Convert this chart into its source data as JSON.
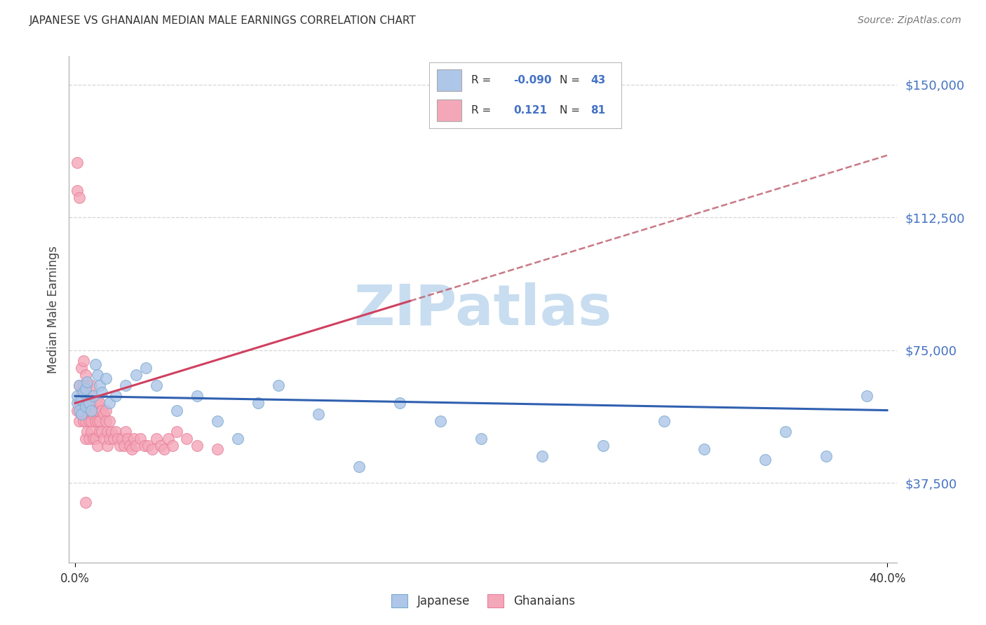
{
  "title": "JAPANESE VS GHANAIAN MEDIAN MALE EARNINGS CORRELATION CHART",
  "source": "Source: ZipAtlas.com",
  "ylabel": "Median Male Earnings",
  "ytick_labels": [
    "$37,500",
    "$75,000",
    "$112,500",
    "$150,000"
  ],
  "ytick_values": [
    37500,
    75000,
    112500,
    150000
  ],
  "ymin": 15000,
  "ymax": 158000,
  "xmin": -0.003,
  "xmax": 0.405,
  "legend_r_japanese": "-0.090",
  "legend_n_japanese": "43",
  "legend_r_ghanaian": "0.121",
  "legend_n_ghanaian": "81",
  "color_japanese": "#aec6e8",
  "color_ghanaian": "#f4a7b9",
  "color_japanese_edge": "#7aaad0",
  "color_ghanaian_edge": "#e8809a",
  "color_japanese_line": "#3060b0",
  "color_ghanaian_line_solid": "#d04060",
  "color_ghanaian_line_dashed": "#c06070",
  "watermark_color": "#c8ddf0",
  "background_color": "#ffffff",
  "grid_color": "#cccccc",
  "title_color": "#333333",
  "source_color": "#777777",
  "axis_label_color": "#4472c4",
  "legend_text_color": "#333333",
  "japanese_x": [
    0.001,
    0.001,
    0.002,
    0.002,
    0.003,
    0.003,
    0.004,
    0.005,
    0.005,
    0.006,
    0.007,
    0.008,
    0.009,
    0.01,
    0.011,
    0.012,
    0.013,
    0.015,
    0.017,
    0.02,
    0.025,
    0.03,
    0.035,
    0.04,
    0.05,
    0.06,
    0.07,
    0.08,
    0.09,
    0.1,
    0.12,
    0.14,
    0.16,
    0.18,
    0.2,
    0.23,
    0.26,
    0.29,
    0.31,
    0.34,
    0.35,
    0.37,
    0.39
  ],
  "japanese_y": [
    60000,
    62000,
    58000,
    65000,
    57000,
    61000,
    63000,
    59000,
    64000,
    66000,
    60000,
    58000,
    62000,
    71000,
    68000,
    65000,
    63000,
    67000,
    60000,
    62000,
    65000,
    68000,
    70000,
    65000,
    58000,
    62000,
    55000,
    50000,
    60000,
    65000,
    57000,
    42000,
    60000,
    55000,
    50000,
    45000,
    48000,
    55000,
    47000,
    44000,
    52000,
    45000,
    62000
  ],
  "ghanaian_x": [
    0.001,
    0.001,
    0.001,
    0.002,
    0.002,
    0.002,
    0.002,
    0.003,
    0.003,
    0.003,
    0.003,
    0.004,
    0.004,
    0.004,
    0.004,
    0.004,
    0.005,
    0.005,
    0.005,
    0.005,
    0.005,
    0.006,
    0.006,
    0.006,
    0.006,
    0.007,
    0.007,
    0.007,
    0.007,
    0.008,
    0.008,
    0.008,
    0.008,
    0.009,
    0.009,
    0.009,
    0.01,
    0.01,
    0.01,
    0.011,
    0.011,
    0.011,
    0.012,
    0.012,
    0.012,
    0.013,
    0.013,
    0.014,
    0.014,
    0.015,
    0.015,
    0.016,
    0.016,
    0.017,
    0.017,
    0.018,
    0.019,
    0.02,
    0.021,
    0.022,
    0.023,
    0.024,
    0.025,
    0.026,
    0.027,
    0.028,
    0.029,
    0.03,
    0.032,
    0.034,
    0.036,
    0.038,
    0.04,
    0.042,
    0.044,
    0.046,
    0.048,
    0.05,
    0.055,
    0.06,
    0.07
  ],
  "ghanaian_y": [
    58000,
    120000,
    128000,
    55000,
    65000,
    118000,
    60000,
    57000,
    63000,
    70000,
    58000,
    60000,
    55000,
    65000,
    72000,
    58000,
    60000,
    55000,
    68000,
    50000,
    32000,
    62000,
    57000,
    52000,
    65000,
    60000,
    55000,
    58000,
    50000,
    65000,
    60000,
    55000,
    52000,
    62000,
    57000,
    50000,
    58000,
    55000,
    50000,
    60000,
    55000,
    48000,
    60000,
    55000,
    52000,
    58000,
    52000,
    57000,
    50000,
    58000,
    55000,
    52000,
    48000,
    55000,
    50000,
    52000,
    50000,
    52000,
    50000,
    48000,
    50000,
    48000,
    52000,
    50000,
    48000,
    47000,
    50000,
    48000,
    50000,
    48000,
    48000,
    47000,
    50000,
    48000,
    47000,
    50000,
    48000,
    52000,
    50000,
    48000,
    47000
  ],
  "gha_trend_solid_end": 0.165,
  "watermark_text": "ZIPatlas"
}
